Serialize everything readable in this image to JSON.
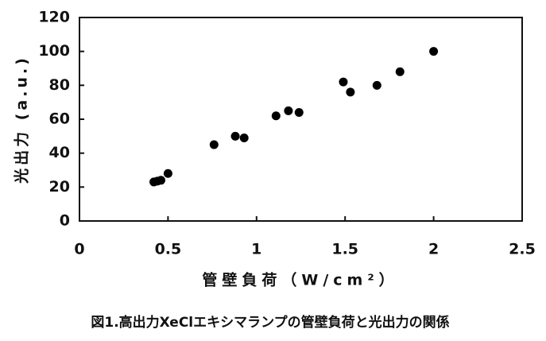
{
  "chart_data": {
    "type": "scatter",
    "x_label": "管壁負荷（W/cm²）",
    "y_label": "光出力 (a.u.)",
    "caption": "図1.高出力XeClエキシマランプの管壁負荷と光出力の関係",
    "x": [
      0.42,
      0.44,
      0.46,
      0.5,
      0.76,
      0.88,
      0.93,
      1.11,
      1.18,
      1.24,
      1.49,
      1.53,
      1.68,
      1.81,
      2.0
    ],
    "values": [
      23,
      23.5,
      24,
      28,
      45,
      50,
      49,
      62,
      65,
      64,
      82,
      76,
      80,
      88,
      100
    ],
    "color": "#000000",
    "xlim": [
      0,
      2.5
    ],
    "xticks": [
      0,
      0.5,
      1,
      1.5,
      2,
      2.5
    ],
    "ylim": [
      0,
      120
    ],
    "yticks": [
      0,
      20,
      40,
      60,
      80,
      100,
      120
    ],
    "grid": false
  }
}
